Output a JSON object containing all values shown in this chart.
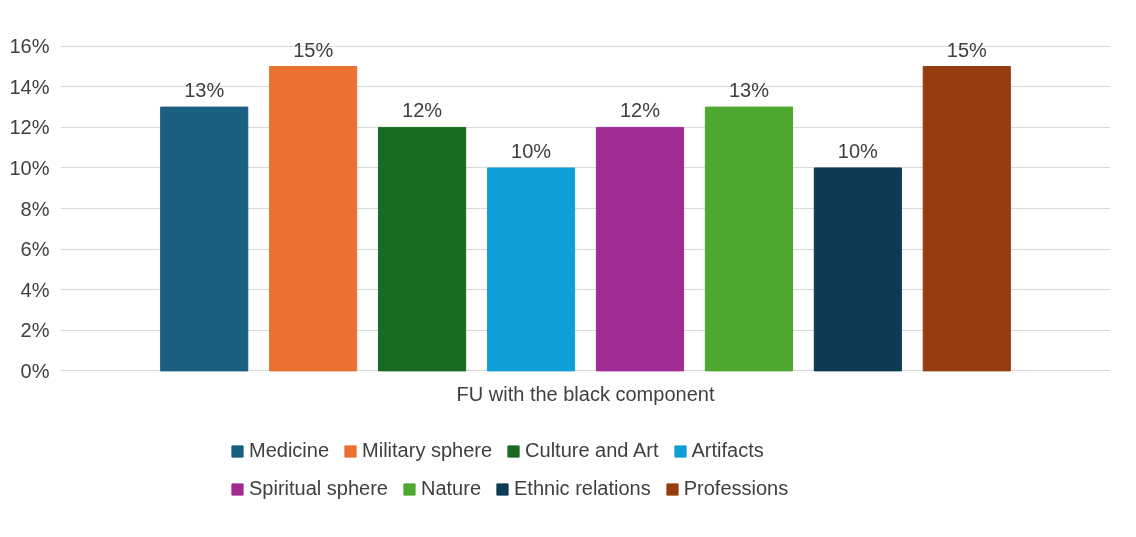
{
  "chart_data": {
    "type": "bar",
    "categories": [
      "FU with the black component"
    ],
    "series": [
      {
        "name": "Medicine",
        "color": "#1a5e80",
        "values": [
          13
        ],
        "value_labels": [
          "13%"
        ]
      },
      {
        "name": "Military sphere",
        "color": "#e97132",
        "values": [
          15
        ],
        "value_labels": [
          "15%"
        ]
      },
      {
        "name": "Culture and Art",
        "color": "#196b24",
        "values": [
          12
        ],
        "value_labels": [
          "12%"
        ]
      },
      {
        "name": "Artifacts",
        "color": "#0f9ed5",
        "values": [
          10
        ],
        "value_labels": [
          "10%"
        ]
      },
      {
        "name": "Spiritual sphere",
        "color": "#a02b93",
        "values": [
          12
        ],
        "value_labels": [
          "12%"
        ]
      },
      {
        "name": "Nature",
        "color": "#4ea72e",
        "values": [
          13
        ],
        "value_labels": [
          "13%"
        ]
      },
      {
        "name": "Ethnic relations",
        "color": "#0e3a52",
        "values": [
          10
        ],
        "value_labels": [
          "10%"
        ]
      },
      {
        "name": "Professions",
        "color": "#953c10",
        "values": [
          15
        ],
        "value_labels": [
          "15%"
        ]
      }
    ],
    "ylim": [
      0,
      16
    ],
    "yticks": [
      {
        "value": 0,
        "label": "0%"
      },
      {
        "value": 2,
        "label": "2%"
      },
      {
        "value": 4,
        "label": "4%"
      },
      {
        "value": 6,
        "label": "6%"
      },
      {
        "value": 8,
        "label": "8%"
      },
      {
        "value": 10,
        "label": "10%"
      },
      {
        "value": 12,
        "label": "12%"
      },
      {
        "value": 14,
        "label": "14%"
      },
      {
        "value": 16,
        "label": "16%"
      }
    ],
    "grid": "y",
    "legend": "bottom"
  }
}
